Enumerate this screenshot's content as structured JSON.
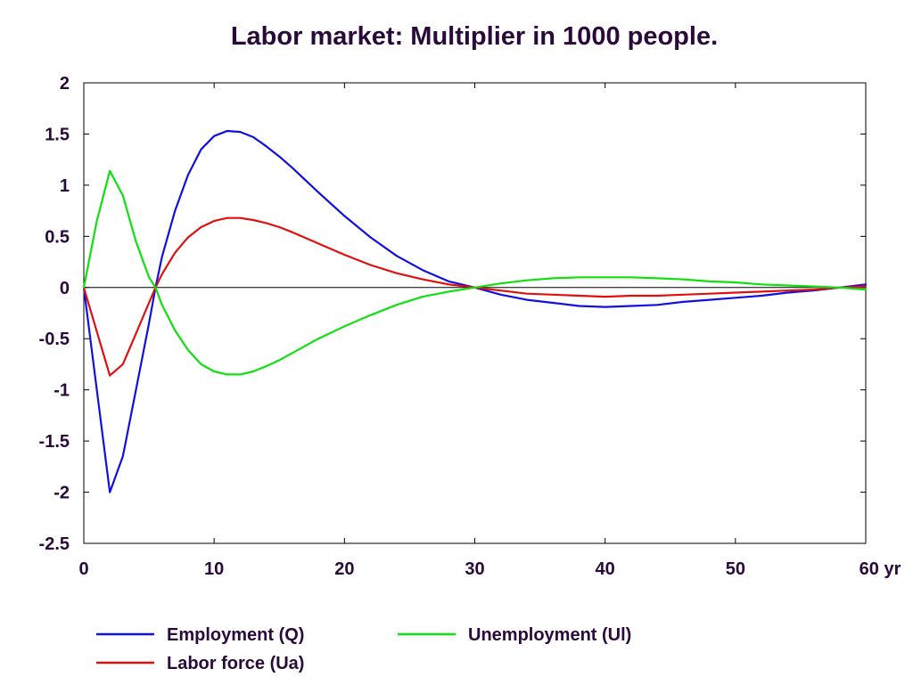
{
  "chart_data": {
    "type": "line",
    "title": "Labor market: Multiplier in 1000 people.",
    "xlim": [
      0,
      60
    ],
    "ylim": [
      -2.5,
      2
    ],
    "x_ticks": [
      0,
      10,
      20,
      30,
      40,
      50,
      60
    ],
    "x_tick_labels": [
      "0",
      "10",
      "20",
      "30",
      "40",
      "50",
      "60 yr"
    ],
    "y_ticks": [
      2,
      1.5,
      1,
      0.5,
      0,
      -0.5,
      -1,
      -1.5,
      -2,
      -2.5
    ],
    "y_tick_labels": [
      "2",
      "1.5",
      "1",
      "0.5",
      "0",
      "-0.5",
      "-1",
      "-1.5",
      "-2",
      "-2.5"
    ],
    "grid": false,
    "zero_line": true,
    "legend_position": "bottom",
    "series": [
      {
        "name": "Employment (Q)",
        "color": "#1010e0",
        "x": [
          0,
          2,
          3,
          4,
          5,
          5.5,
          6,
          7,
          8,
          9,
          10,
          11,
          12,
          13,
          14,
          15,
          16,
          18,
          20,
          22,
          24,
          26,
          28,
          30,
          32,
          34,
          36,
          38,
          40,
          42,
          44,
          46,
          48,
          50,
          52,
          54,
          56,
          58,
          60
        ],
        "values": [
          0,
          -2.0,
          -1.65,
          -1.0,
          -0.35,
          0.0,
          0.3,
          0.75,
          1.1,
          1.35,
          1.48,
          1.53,
          1.52,
          1.47,
          1.38,
          1.28,
          1.17,
          0.93,
          0.7,
          0.49,
          0.31,
          0.17,
          0.06,
          0.0,
          -0.07,
          -0.12,
          -0.15,
          -0.18,
          -0.19,
          -0.18,
          -0.17,
          -0.14,
          -0.12,
          -0.1,
          -0.08,
          -0.05,
          -0.03,
          0.0,
          0.03
        ]
      },
      {
        "name": "Labor force (Ua)",
        "color": "#e01010",
        "x": [
          0,
          2,
          3,
          4,
          5,
          5.5,
          6,
          7,
          8,
          9,
          10,
          11,
          12,
          13,
          14,
          15,
          16,
          18,
          20,
          22,
          24,
          26,
          28,
          30,
          32,
          34,
          36,
          38,
          40,
          42,
          44,
          46,
          48,
          50,
          52,
          54,
          56,
          58,
          60
        ],
        "values": [
          0,
          -0.86,
          -0.75,
          -0.45,
          -0.15,
          0.0,
          0.13,
          0.34,
          0.49,
          0.59,
          0.65,
          0.68,
          0.68,
          0.66,
          0.63,
          0.59,
          0.54,
          0.43,
          0.32,
          0.22,
          0.14,
          0.08,
          0.03,
          0.0,
          -0.03,
          -0.06,
          -0.07,
          -0.08,
          -0.09,
          -0.08,
          -0.08,
          -0.07,
          -0.06,
          -0.05,
          -0.04,
          -0.03,
          -0.02,
          0.0,
          0.01
        ]
      },
      {
        "name": "Unemployment (Ul)",
        "color": "#10e010",
        "x": [
          0,
          1,
          2,
          3,
          4,
          5,
          5.5,
          6,
          7,
          8,
          9,
          10,
          11,
          12,
          13,
          14,
          15,
          16,
          18,
          20,
          22,
          24,
          26,
          28,
          30,
          32,
          34,
          36,
          38,
          40,
          42,
          44,
          46,
          48,
          50,
          52,
          54,
          56,
          58,
          60
        ],
        "values": [
          0,
          0.65,
          1.14,
          0.9,
          0.45,
          0.1,
          0.0,
          -0.17,
          -0.42,
          -0.61,
          -0.75,
          -0.82,
          -0.85,
          -0.85,
          -0.82,
          -0.77,
          -0.71,
          -0.64,
          -0.5,
          -0.38,
          -0.27,
          -0.17,
          -0.09,
          -0.04,
          0.0,
          0.04,
          0.07,
          0.09,
          0.1,
          0.1,
          0.1,
          0.09,
          0.08,
          0.06,
          0.05,
          0.03,
          0.02,
          0.01,
          0.0,
          -0.02
        ]
      }
    ]
  }
}
